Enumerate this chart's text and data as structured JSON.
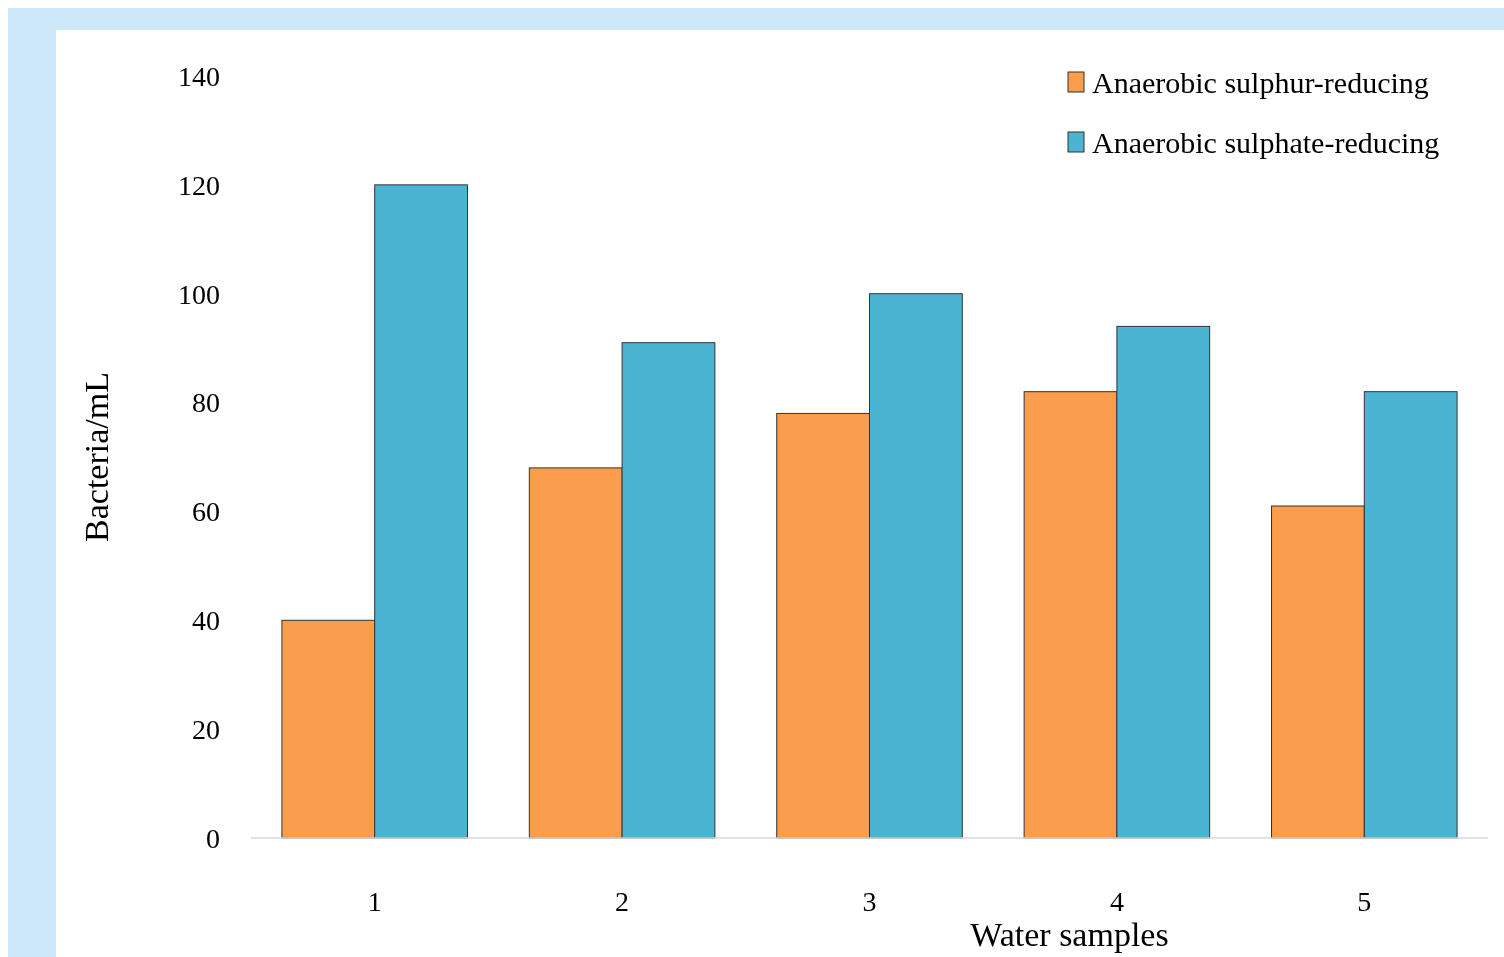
{
  "chart_data": {
    "type": "bar",
    "xlabel": "Water samples",
    "ylabel": "Bacteria/mL",
    "categories": [
      "1",
      "2",
      "3",
      "4",
      "5"
    ],
    "series": [
      {
        "name": "Anaerobic sulphur-reducing",
        "color": "#fa9e4e",
        "values": [
          40,
          68,
          78,
          82,
          61
        ]
      },
      {
        "name": "Anaerobic sulphate-reducing",
        "color": "#4bb4d3",
        "values": [
          120,
          91,
          100,
          94,
          82
        ]
      }
    ],
    "ylim": [
      0,
      140
    ],
    "yticks": [
      0,
      20,
      40,
      60,
      80,
      100,
      120,
      140
    ],
    "grid": false,
    "legend": "top right"
  }
}
